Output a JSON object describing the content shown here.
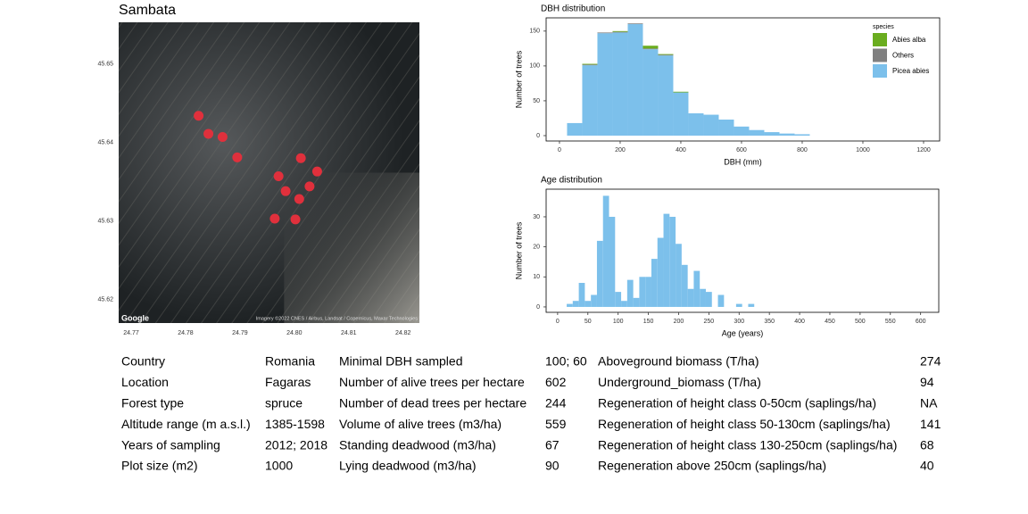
{
  "chart_data": [
    {
      "type": "map",
      "title": "Sambata",
      "x": [
        24.7824,
        24.7842,
        24.7868,
        24.7895,
        24.7971,
        24.8012,
        24.8042,
        24.8028,
        24.7984,
        24.8009,
        24.7964,
        24.8002
      ],
      "values": [
        45.6434,
        45.6411,
        45.6407,
        45.6381,
        45.6357,
        45.638,
        45.6363,
        45.6344,
        45.6338,
        45.6328,
        45.6303,
        45.6302
      ],
      "color": "#e0303c",
      "xlim": [
        24.7677,
        24.823
      ],
      "ylim": [
        45.617,
        45.6553
      ],
      "xticks": [
        24.77,
        24.78,
        24.79,
        {
          "value": 24.8,
          "label": "24.80"
        },
        24.81,
        24.82
      ],
      "yticks": [
        45.62,
        45.63,
        45.64,
        45.65
      ],
      "provider": "Google",
      "attribution": "Imagery ©2022 CNES / Airbus, Landsat / Copernicus, Maxar Technologies"
    },
    {
      "type": "histogram",
      "title": "DBH distribution",
      "x_label": "DBH (mm)",
      "y_label": "Number of trees",
      "bins": [
        25,
        75,
        125,
        175,
        225,
        275,
        325,
        375,
        425,
        475,
        525,
        575,
        625,
        675,
        725,
        775,
        825
      ],
      "series": [
        {
          "name": "Picea abies",
          "color": "#7cc0eb",
          "values": [
            18,
            101,
            147,
            148,
            160,
            124,
            115,
            62,
            32,
            30,
            23,
            13,
            8,
            5,
            3,
            2
          ]
        },
        {
          "name": "Others",
          "color": "#808080",
          "values": [
            0,
            1,
            1,
            1,
            1,
            1,
            1,
            0,
            0,
            0,
            0,
            0,
            0,
            0,
            0,
            0
          ]
        },
        {
          "name": "Abies alba",
          "color": "#6aad1f",
          "values": [
            0,
            1,
            0,
            1,
            0,
            4,
            1,
            1,
            0,
            0,
            0,
            0,
            0,
            0,
            0,
            0
          ]
        }
      ],
      "legend_title": "species",
      "legend": "top-right",
      "xlim": [
        -44,
        1253
      ],
      "ylim": [
        -7.7,
        169
      ],
      "xticks": [
        0,
        200,
        400,
        600,
        800,
        1000,
        1200
      ],
      "yticks": [
        0,
        50,
        100,
        150
      ]
    },
    {
      "type": "histogram",
      "title": "Age distribution",
      "x_label": "Age (years)",
      "y_label": "Number of trees",
      "bins": [
        15,
        25,
        35,
        45,
        55,
        65,
        75,
        85,
        95,
        105,
        115,
        125,
        135,
        145,
        155,
        165,
        175,
        185,
        195,
        205,
        215,
        225,
        235,
        245,
        255,
        265,
        275,
        285,
        295,
        305,
        315,
        325
      ],
      "values": [
        1,
        2,
        8,
        2,
        4,
        22,
        37,
        30,
        5,
        2,
        9,
        3,
        10,
        10,
        16,
        23,
        31,
        30,
        21,
        14,
        6,
        12,
        6,
        5,
        0,
        4,
        0,
        0,
        1,
        0,
        1
      ],
      "color": "#7cc0eb",
      "xlim": [
        -19,
        630
      ],
      "ylim": [
        -1.8,
        39.2
      ],
      "xticks": [
        0,
        50,
        100,
        150,
        200,
        250,
        300,
        350,
        400,
        450,
        500,
        550,
        600
      ],
      "yticks": [
        0,
        10,
        20,
        30
      ]
    }
  ],
  "table": {
    "rows": [
      [
        "Country",
        "Romania",
        "Minimal DBH sampled",
        "100; 60",
        "Aboveground biomass (T/ha)",
        "274"
      ],
      [
        "Location",
        "Fagaras",
        "Number of alive trees per hectare",
        "602",
        "Underground_biomass (T/ha)",
        "94"
      ],
      [
        "Forest type",
        "spruce",
        "Number of dead trees per hectare",
        "244",
        "Regeneration of height class 0-50cm (saplings/ha)",
        "NA"
      ],
      [
        "Altitude range (m a.s.l.)",
        "1385-1598",
        "Volume of alive trees (m3/ha)",
        "559",
        "Regeneration of height class 50-130cm (saplings/ha)",
        "141"
      ],
      [
        "Years of sampling",
        "2012; 2018",
        "Standing deadwood (m3/ha)",
        "67",
        "Regeneration of height class 130-250cm (saplings/ha)",
        "68"
      ],
      [
        "Plot size (m2)",
        "1000",
        "Lying deadwood (m3/ha)",
        "90",
        "Regeneration above 250cm (saplings/ha)",
        "40"
      ]
    ]
  }
}
